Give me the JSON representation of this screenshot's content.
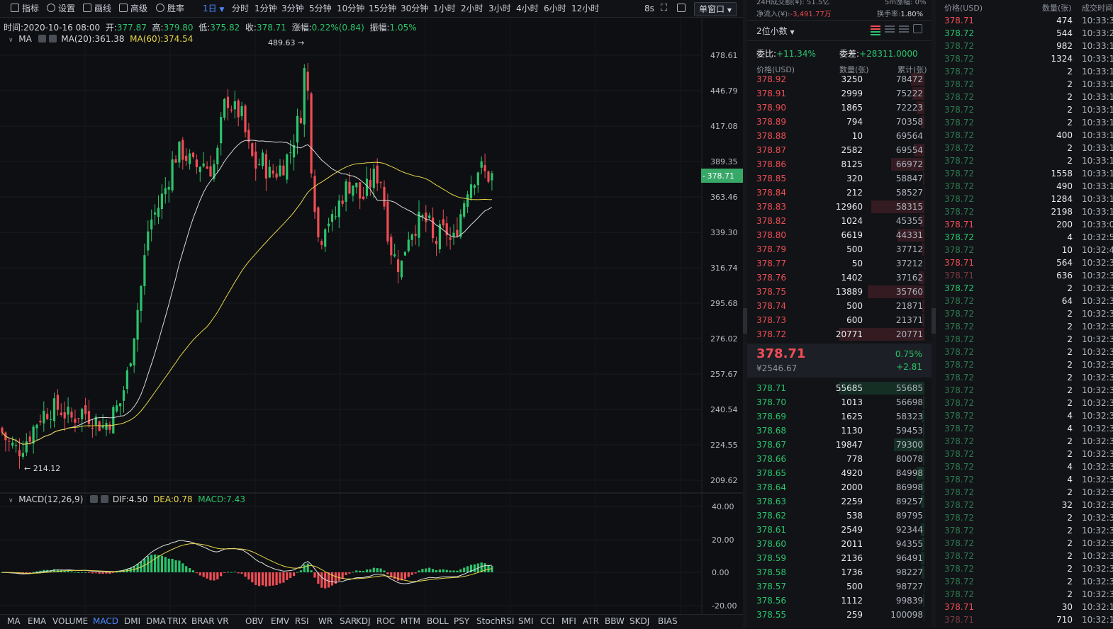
{
  "toolbar": {
    "tools": [
      {
        "label": "指标",
        "icon": "indicator-icon"
      },
      {
        "label": "设置",
        "icon": "gear-icon"
      },
      {
        "label": "画线",
        "icon": "pencil-icon"
      },
      {
        "label": "高级",
        "icon": "calendar-icon"
      },
      {
        "label": "胜率",
        "icon": "clock-icon"
      }
    ],
    "periods": [
      "1日",
      "分时",
      "1分钟",
      "3分钟",
      "5分钟",
      "10分钟",
      "15分钟",
      "30分钟",
      "1小时",
      "2小时",
      "3小时",
      "4小时",
      "6小时",
      "12小时"
    ],
    "active_period": "1日",
    "refresh": "8s",
    "window_mode": "单窗口"
  },
  "info": {
    "time_label": "时间:",
    "time": "2020-10-16 08:00",
    "open_label": "开:",
    "open": "377.87",
    "high_label": "高:",
    "high": "379.80",
    "low_label": "低:",
    "low": "375.82",
    "close_label": "收:",
    "close": "378.71",
    "change_label": "涨幅:",
    "change": "0.22%(0.84)",
    "amp_label": "振幅:",
    "amp": "1.05%"
  },
  "ma": {
    "name": "MA",
    "ma20": "MA(20):361.38",
    "ma60": "MA(60):374.54"
  },
  "macd_info": {
    "name": "MACD(12,26,9)",
    "dif": "DIF:4.50",
    "dea": "DEA:0.78",
    "macd": "MACD:7.43"
  },
  "colors": {
    "up": "#2bc46d",
    "down": "#ef4d55",
    "ma20": "#d8d8d8",
    "ma60": "#e7d64a",
    "current": "#38a868"
  },
  "chart_data": {
    "type": "candlestick",
    "price_axis": [
      "478.61",
      "446.79",
      "417.08",
      "389.35",
      "363.46",
      "339.30",
      "316.74",
      "295.68",
      "276.02",
      "257.67",
      "240.54",
      "224.55",
      "209.62"
    ],
    "current_price": "378.71",
    "max_label": "489.63",
    "min_label": "214.12",
    "macd_axis": [
      "40.00",
      "20.00",
      "0.00",
      "-20.00"
    ]
  },
  "indicators": [
    "MA",
    "EMA",
    "VOLUME",
    "MACD",
    "DMI",
    "DMA",
    "TRIX",
    "BRAR",
    "VR",
    "OBV",
    "EMV",
    "RSI",
    "WR",
    "SAR",
    "KDJ",
    "ROC",
    "MTM",
    "BOLL",
    "PSY",
    "StochRSI",
    "SMI",
    "CCI",
    "MFI",
    "ATR",
    "BBW",
    "SKDJ",
    "BIAS"
  ],
  "active_indicator": "MACD",
  "orderbook": {
    "top_left": "24H成交额(¥): 51.5亿",
    "top_right": "5m涨幅: 0%",
    "inflow_label": "净流入(¥):",
    "inflow": "-3,491.77万",
    "turnover_label": "换手率:",
    "turnover": "1.80%",
    "precision": "2位小数",
    "weibi_label": "委比:",
    "weibi": "+11.34%",
    "weicha_label": "委差:",
    "weicha": "+28311.0000",
    "headers": [
      "价格(USD)",
      "数量(张)",
      "累计(张)"
    ],
    "asks": [
      {
        "price": "378.92",
        "qty": "3250",
        "cum": "78472"
      },
      {
        "price": "378.91",
        "qty": "2999",
        "cum": "75222"
      },
      {
        "price": "378.90",
        "qty": "1865",
        "cum": "72223"
      },
      {
        "price": "378.89",
        "qty": "794",
        "cum": "70358"
      },
      {
        "price": "378.88",
        "qty": "10",
        "cum": "69564"
      },
      {
        "price": "378.87",
        "qty": "2582",
        "cum": "69554"
      },
      {
        "price": "378.86",
        "qty": "8125",
        "cum": "66972"
      },
      {
        "price": "378.85",
        "qty": "320",
        "cum": "58847"
      },
      {
        "price": "378.84",
        "qty": "212",
        "cum": "58527"
      },
      {
        "price": "378.83",
        "qty": "12960",
        "cum": "58315"
      },
      {
        "price": "378.82",
        "qty": "1024",
        "cum": "45355"
      },
      {
        "price": "378.80",
        "qty": "6619",
        "cum": "44331"
      },
      {
        "price": "378.79",
        "qty": "500",
        "cum": "37712"
      },
      {
        "price": "378.77",
        "qty": "50",
        "cum": "37212"
      },
      {
        "price": "378.76",
        "qty": "1402",
        "cum": "37162"
      },
      {
        "price": "378.75",
        "qty": "13889",
        "cum": "35760"
      },
      {
        "price": "378.74",
        "qty": "500",
        "cum": "21871"
      },
      {
        "price": "378.73",
        "qty": "600",
        "cum": "21371"
      },
      {
        "price": "378.72",
        "qty": "20771",
        "cum": "20771"
      }
    ],
    "last_price": "378.71",
    "last_cny": "¥2546.67",
    "last_pct": "0.75%",
    "last_change": "+2.81",
    "bids": [
      {
        "price": "378.71",
        "qty": "55685",
        "cum": "55685"
      },
      {
        "price": "378.70",
        "qty": "1013",
        "cum": "56698"
      },
      {
        "price": "378.69",
        "qty": "1625",
        "cum": "58323"
      },
      {
        "price": "378.68",
        "qty": "1130",
        "cum": "59453"
      },
      {
        "price": "378.67",
        "qty": "19847",
        "cum": "79300"
      },
      {
        "price": "378.66",
        "qty": "778",
        "cum": "80078"
      },
      {
        "price": "378.65",
        "qty": "4920",
        "cum": "84998"
      },
      {
        "price": "378.64",
        "qty": "2000",
        "cum": "86998"
      },
      {
        "price": "378.63",
        "qty": "2259",
        "cum": "89257"
      },
      {
        "price": "378.62",
        "qty": "538",
        "cum": "89795"
      },
      {
        "price": "378.61",
        "qty": "2549",
        "cum": "92344"
      },
      {
        "price": "378.60",
        "qty": "2011",
        "cum": "94355"
      },
      {
        "price": "378.59",
        "qty": "2136",
        "cum": "96491"
      },
      {
        "price": "378.58",
        "qty": "1736",
        "cum": "98227"
      },
      {
        "price": "378.57",
        "qty": "500",
        "cum": "98727"
      },
      {
        "price": "378.56",
        "qty": "1112",
        "cum": "99839"
      },
      {
        "price": "378.55",
        "qty": "259",
        "cum": "100098"
      }
    ]
  },
  "trades": {
    "headers": [
      "价格(USD)",
      "数量(张)",
      "成交时间"
    ],
    "rows": [
      {
        "price": "378.71",
        "side": "sell",
        "qty": "474",
        "time": "10:33:38"
      },
      {
        "price": "378.72",
        "side": "buy",
        "qty": "544",
        "time": "10:33:28"
      },
      {
        "price": "378.72",
        "side": "buy-dim",
        "qty": "982",
        "time": "10:33:16"
      },
      {
        "price": "378.72",
        "side": "buy-dim",
        "qty": "1324",
        "time": "10:33:11"
      },
      {
        "price": "378.72",
        "side": "buy-dim",
        "qty": "2",
        "time": "10:33:11"
      },
      {
        "price": "378.72",
        "side": "buy-dim",
        "qty": "2",
        "time": "10:33:11"
      },
      {
        "price": "378.72",
        "side": "buy-dim",
        "qty": "2",
        "time": "10:33:11"
      },
      {
        "price": "378.72",
        "side": "buy-dim",
        "qty": "2",
        "time": "10:33:11"
      },
      {
        "price": "378.72",
        "side": "buy-dim",
        "qty": "2",
        "time": "10:33:11"
      },
      {
        "price": "378.72",
        "side": "buy-dim",
        "qty": "400",
        "time": "10:33:11"
      },
      {
        "price": "378.72",
        "side": "buy-dim",
        "qty": "2",
        "time": "10:33:11"
      },
      {
        "price": "378.72",
        "side": "buy-dim",
        "qty": "2",
        "time": "10:33:11"
      },
      {
        "price": "378.72",
        "side": "buy-dim",
        "qty": "1558",
        "time": "10:33:11"
      },
      {
        "price": "378.72",
        "side": "buy-dim",
        "qty": "490",
        "time": "10:33:10"
      },
      {
        "price": "378.72",
        "side": "buy-dim",
        "qty": "1284",
        "time": "10:33:10"
      },
      {
        "price": "378.72",
        "side": "buy-dim",
        "qty": "2198",
        "time": "10:33:10"
      },
      {
        "price": "378.71",
        "side": "sell",
        "qty": "200",
        "time": "10:33:04"
      },
      {
        "price": "378.72",
        "side": "buy",
        "qty": "4",
        "time": "10:32:52"
      },
      {
        "price": "378.72",
        "side": "buy-dim",
        "qty": "10",
        "time": "10:32:44"
      },
      {
        "price": "378.71",
        "side": "sell",
        "qty": "564",
        "time": "10:32:32"
      },
      {
        "price": "378.71",
        "side": "sell-dim",
        "qty": "636",
        "time": "10:32:32"
      },
      {
        "price": "378.72",
        "side": "buy",
        "qty": "2",
        "time": "10:32:31"
      },
      {
        "price": "378.72",
        "side": "buy-dim",
        "qty": "64",
        "time": "10:32:31"
      },
      {
        "price": "378.72",
        "side": "buy-dim",
        "qty": "2",
        "time": "10:32:31"
      },
      {
        "price": "378.72",
        "side": "buy-dim",
        "qty": "2",
        "time": "10:32:31"
      },
      {
        "price": "378.72",
        "side": "buy-dim",
        "qty": "2",
        "time": "10:32:31"
      },
      {
        "price": "378.72",
        "side": "buy-dim",
        "qty": "2",
        "time": "10:32:31"
      },
      {
        "price": "378.72",
        "side": "buy-dim",
        "qty": "2",
        "time": "10:32:31"
      },
      {
        "price": "378.72",
        "side": "buy-dim",
        "qty": "2",
        "time": "10:32:31"
      },
      {
        "price": "378.72",
        "side": "buy-dim",
        "qty": "2",
        "time": "10:32:31"
      },
      {
        "price": "378.72",
        "side": "buy-dim",
        "qty": "2",
        "time": "10:32:31"
      },
      {
        "price": "378.72",
        "side": "buy-dim",
        "qty": "4",
        "time": "10:32:31"
      },
      {
        "price": "378.72",
        "side": "buy-dim",
        "qty": "4",
        "time": "10:32:31"
      },
      {
        "price": "378.72",
        "side": "buy-dim",
        "qty": "2",
        "time": "10:32:31"
      },
      {
        "price": "378.72",
        "side": "buy-dim",
        "qty": "2",
        "time": "10:32:31"
      },
      {
        "price": "378.72",
        "side": "buy-dim",
        "qty": "4",
        "time": "10:32:31"
      },
      {
        "price": "378.72",
        "side": "buy-dim",
        "qty": "4",
        "time": "10:32:31"
      },
      {
        "price": "378.72",
        "side": "buy-dim",
        "qty": "2",
        "time": "10:32:31"
      },
      {
        "price": "378.72",
        "side": "buy-dim",
        "qty": "32",
        "time": "10:32:31"
      },
      {
        "price": "378.72",
        "side": "buy-dim",
        "qty": "2",
        "time": "10:32:31"
      },
      {
        "price": "378.72",
        "side": "buy-dim",
        "qty": "2",
        "time": "10:32:31"
      },
      {
        "price": "378.72",
        "side": "buy-dim",
        "qty": "2",
        "time": "10:32:31"
      },
      {
        "price": "378.72",
        "side": "buy-dim",
        "qty": "2",
        "time": "10:32:31"
      },
      {
        "price": "378.72",
        "side": "buy-dim",
        "qty": "2",
        "time": "10:32:31"
      },
      {
        "price": "378.72",
        "side": "buy-dim",
        "qty": "2",
        "time": "10:32:31"
      },
      {
        "price": "378.72",
        "side": "buy-dim",
        "qty": "2",
        "time": "10:32:31"
      },
      {
        "price": "378.71",
        "side": "sell",
        "qty": "30",
        "time": "10:32:12"
      },
      {
        "price": "378.71",
        "side": "sell-dim",
        "qty": "710",
        "time": "10:32:12"
      },
      {
        "price": "378.72",
        "side": "buy",
        "qty": "226",
        "time": "10:32:10"
      }
    ]
  }
}
